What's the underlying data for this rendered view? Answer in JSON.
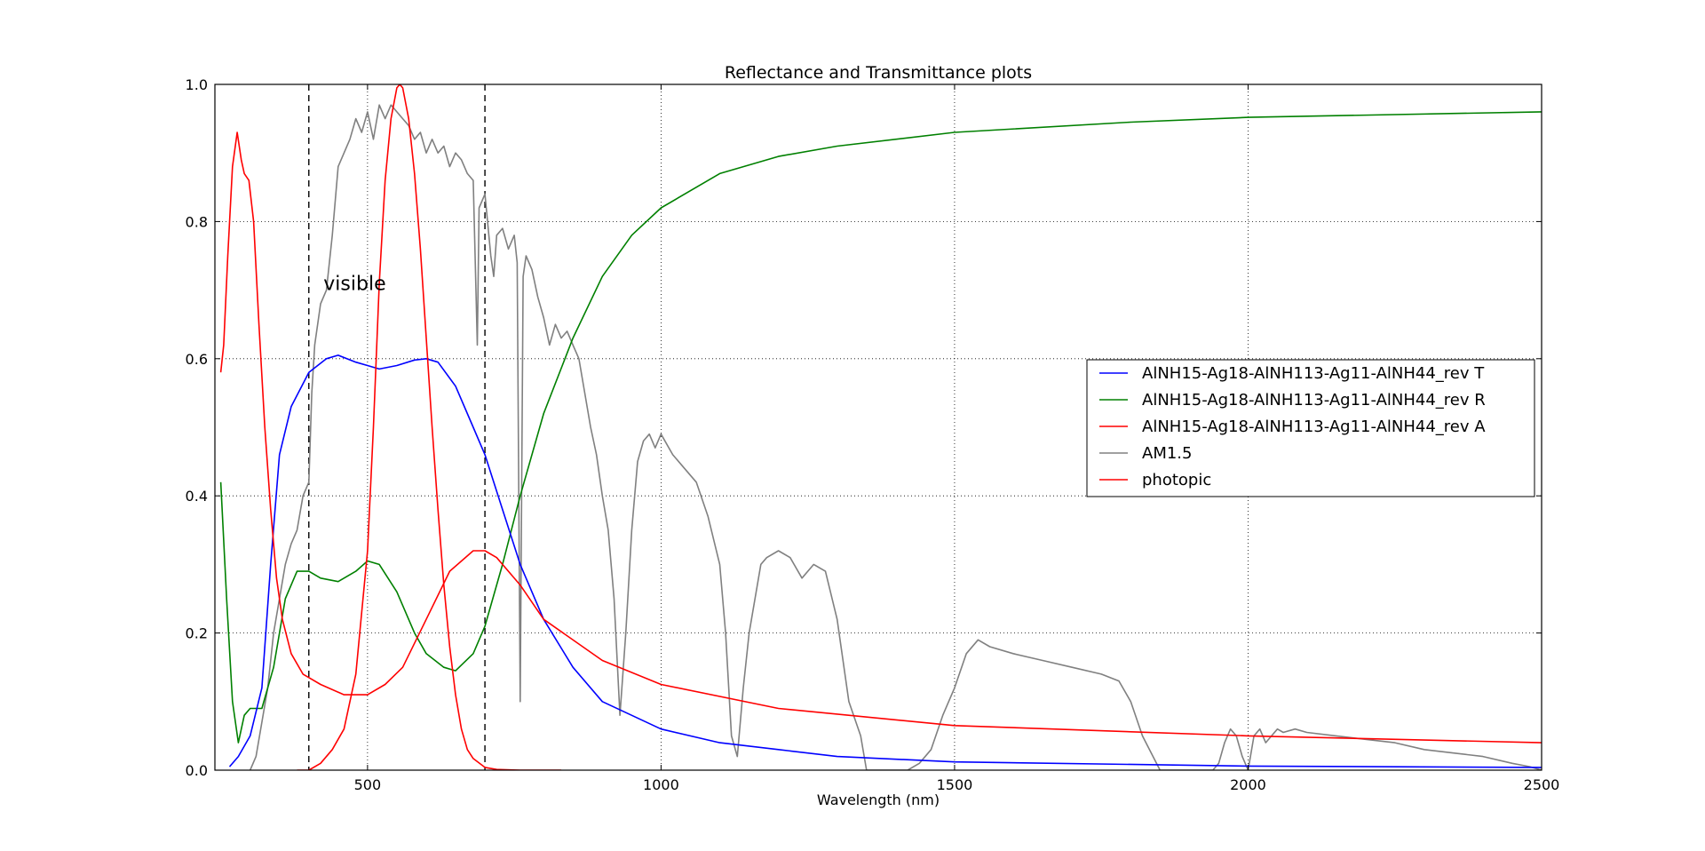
{
  "chart_data": {
    "type": "line",
    "title": "Reflectance and Transmittance plots",
    "xlabel": "Wavelength (nm)",
    "ylabel": "",
    "xlim": [
      240,
      2500
    ],
    "ylim": [
      0.0,
      1.0
    ],
    "xticks": [
      500,
      1000,
      1500,
      2000,
      2500
    ],
    "xtick_labels": [
      "500",
      "1000",
      "1500",
      "2000",
      "2500"
    ],
    "yticks": [
      0.0,
      0.2,
      0.4,
      0.6,
      0.8,
      1.0
    ],
    "ytick_labels": [
      "0.0",
      "0.2",
      "0.4",
      "0.6",
      "0.8",
      "1.0"
    ],
    "grid": true,
    "legend_position": "center-right",
    "annotation": {
      "text": "visible",
      "x": 425,
      "y": 0.7
    },
    "vlines": [
      400,
      700
    ],
    "series": [
      {
        "name": "AlNH15-Ag18-AlNH113-Ag11-AlNH44_rev T",
        "color": "#0000ff",
        "x": [
          265,
          280,
          300,
          320,
          335,
          350,
          370,
          400,
          430,
          450,
          480,
          500,
          520,
          550,
          580,
          600,
          620,
          650,
          680,
          700,
          730,
          760,
          800,
          850,
          900,
          1000,
          1100,
          1200,
          1300,
          1500,
          2000,
          2500
        ],
        "y": [
          0.005,
          0.02,
          0.05,
          0.12,
          0.3,
          0.46,
          0.53,
          0.58,
          0.6,
          0.605,
          0.595,
          0.59,
          0.585,
          0.59,
          0.598,
          0.6,
          0.595,
          0.56,
          0.5,
          0.46,
          0.38,
          0.3,
          0.22,
          0.15,
          0.1,
          0.06,
          0.04,
          0.03,
          0.02,
          0.012,
          0.006,
          0.004
        ]
      },
      {
        "name": "AlNH15-Ag18-AlNH113-Ag11-AlNH44_rev R",
        "color": "#008000",
        "x": [
          250,
          260,
          270,
          280,
          290,
          300,
          320,
          340,
          360,
          380,
          400,
          420,
          450,
          480,
          500,
          520,
          550,
          580,
          600,
          630,
          650,
          680,
          700,
          730,
          760,
          800,
          850,
          900,
          950,
          1000,
          1100,
          1200,
          1300,
          1500,
          1800,
          2000,
          2500
        ],
        "y": [
          0.42,
          0.25,
          0.1,
          0.04,
          0.08,
          0.09,
          0.09,
          0.15,
          0.25,
          0.29,
          0.29,
          0.28,
          0.275,
          0.29,
          0.305,
          0.3,
          0.26,
          0.2,
          0.17,
          0.15,
          0.145,
          0.17,
          0.21,
          0.3,
          0.4,
          0.52,
          0.63,
          0.72,
          0.78,
          0.82,
          0.87,
          0.895,
          0.91,
          0.93,
          0.945,
          0.952,
          0.96
        ]
      },
      {
        "name": "AlNH15-Ag18-AlNH113-Ag11-AlNH44_rev A",
        "color": "#ff0000",
        "x": [
          250,
          255,
          262,
          270,
          278,
          285,
          290,
          298,
          306,
          315,
          325,
          335,
          345,
          355,
          370,
          390,
          420,
          460,
          500,
          530,
          560,
          600,
          640,
          680,
          700,
          720,
          760,
          800,
          900,
          1000,
          1200,
          1500,
          2000,
          2500
        ],
        "y": [
          0.58,
          0.62,
          0.75,
          0.88,
          0.93,
          0.89,
          0.87,
          0.86,
          0.8,
          0.65,
          0.5,
          0.38,
          0.28,
          0.22,
          0.17,
          0.14,
          0.125,
          0.11,
          0.11,
          0.125,
          0.15,
          0.22,
          0.29,
          0.32,
          0.32,
          0.31,
          0.27,
          0.22,
          0.16,
          0.125,
          0.09,
          0.065,
          0.05,
          0.04
        ]
      },
      {
        "name": "AM1.5",
        "color": "#808080",
        "x": [
          300,
          310,
          320,
          330,
          340,
          350,
          360,
          370,
          380,
          390,
          400,
          405,
          410,
          420,
          430,
          440,
          450,
          460,
          470,
          480,
          490,
          500,
          510,
          520,
          530,
          540,
          550,
          560,
          570,
          580,
          590,
          600,
          610,
          620,
          630,
          640,
          650,
          660,
          670,
          680,
          687,
          690,
          700,
          710,
          715,
          720,
          730,
          740,
          750,
          755,
          760,
          765,
          770,
          780,
          790,
          800,
          810,
          820,
          830,
          840,
          850,
          860,
          870,
          880,
          890,
          900,
          910,
          920,
          930,
          940,
          950,
          960,
          970,
          980,
          990,
          1000,
          1020,
          1040,
          1060,
          1080,
          1100,
          1110,
          1120,
          1130,
          1140,
          1150,
          1160,
          1170,
          1180,
          1200,
          1220,
          1240,
          1260,
          1280,
          1300,
          1320,
          1340,
          1350,
          1360,
          1380,
          1400,
          1420,
          1440,
          1460,
          1480,
          1500,
          1520,
          1540,
          1560,
          1600,
          1650,
          1700,
          1750,
          1780,
          1800,
          1820,
          1850,
          1900,
          1940,
          1950,
          1960,
          1970,
          1980,
          1990,
          2000,
          2010,
          2020,
          2030,
          2040,
          2050,
          2060,
          2080,
          2100,
          2150,
          2200,
          2250,
          2300,
          2350,
          2400,
          2450,
          2480,
          2500
        ],
        "y": [
          0.0,
          0.02,
          0.07,
          0.12,
          0.2,
          0.25,
          0.3,
          0.33,
          0.35,
          0.4,
          0.42,
          0.55,
          0.62,
          0.68,
          0.7,
          0.78,
          0.88,
          0.9,
          0.92,
          0.95,
          0.93,
          0.96,
          0.92,
          0.97,
          0.95,
          0.97,
          0.96,
          0.95,
          0.94,
          0.92,
          0.93,
          0.9,
          0.92,
          0.9,
          0.91,
          0.88,
          0.9,
          0.89,
          0.87,
          0.86,
          0.62,
          0.82,
          0.84,
          0.75,
          0.72,
          0.78,
          0.79,
          0.76,
          0.78,
          0.74,
          0.1,
          0.72,
          0.75,
          0.73,
          0.69,
          0.66,
          0.62,
          0.65,
          0.63,
          0.64,
          0.62,
          0.6,
          0.55,
          0.5,
          0.46,
          0.4,
          0.35,
          0.25,
          0.08,
          0.2,
          0.35,
          0.45,
          0.48,
          0.49,
          0.47,
          0.49,
          0.46,
          0.44,
          0.42,
          0.37,
          0.3,
          0.2,
          0.05,
          0.02,
          0.12,
          0.2,
          0.25,
          0.3,
          0.31,
          0.32,
          0.31,
          0.28,
          0.3,
          0.29,
          0.22,
          0.1,
          0.05,
          0.0,
          0.0,
          0.0,
          0.0,
          0.0,
          0.01,
          0.03,
          0.08,
          0.12,
          0.17,
          0.19,
          0.18,
          0.17,
          0.16,
          0.15,
          0.14,
          0.13,
          0.1,
          0.05,
          0.0,
          0.0,
          0.0,
          0.01,
          0.04,
          0.06,
          0.05,
          0.02,
          0.0,
          0.05,
          0.06,
          0.04,
          0.05,
          0.06,
          0.055,
          0.06,
          0.055,
          0.05,
          0.045,
          0.04,
          0.03,
          0.025,
          0.02,
          0.01,
          0.005,
          0.0
        ]
      },
      {
        "name": "photopic",
        "color": "#ff0000",
        "x": [
          380,
          400,
          420,
          440,
          460,
          480,
          500,
          510,
          520,
          530,
          540,
          550,
          555,
          560,
          570,
          580,
          590,
          600,
          610,
          620,
          630,
          640,
          650,
          660,
          670,
          680,
          700,
          720,
          760,
          830
        ],
        "y": [
          0.0,
          0.0,
          0.01,
          0.03,
          0.06,
          0.14,
          0.32,
          0.5,
          0.71,
          0.86,
          0.95,
          0.995,
          1.0,
          0.995,
          0.95,
          0.87,
          0.76,
          0.63,
          0.5,
          0.38,
          0.27,
          0.18,
          0.11,
          0.06,
          0.03,
          0.017,
          0.004,
          0.001,
          0.0,
          0.0
        ]
      }
    ]
  }
}
